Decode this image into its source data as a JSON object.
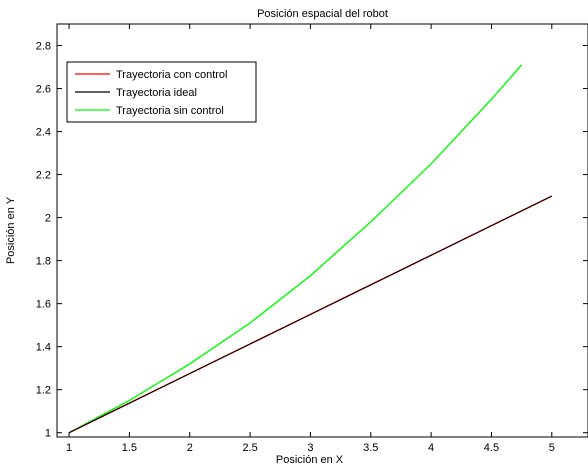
{
  "chart_data": {
    "type": "line",
    "title": "Posición espacial del robot",
    "xlabel": "Posición en X",
    "ylabel": "Posición en Y",
    "xlim": [
      0.9,
      5.3
    ],
    "ylim": [
      0.98,
      2.9
    ],
    "xticks": [
      1,
      1.5,
      2,
      2.5,
      3,
      3.5,
      4,
      4.5,
      5
    ],
    "xtick_labels": [
      "1",
      "1.5",
      "2",
      "2.5",
      "3",
      "3.5",
      "4",
      "4.5",
      "5"
    ],
    "yticks": [
      1,
      1.2,
      1.4,
      1.6,
      1.8,
      2,
      2.2,
      2.4,
      2.6,
      2.8
    ],
    "ytick_labels": [
      "1",
      "1.2",
      "1.4",
      "1.6",
      "1.8",
      "2",
      "2.2",
      "2.4",
      "2.6",
      "2.8"
    ],
    "grid": false,
    "legend_position": "top-left",
    "series": [
      {
        "name": "Trayectoria con control",
        "color": "#ff0000",
        "x": [
          1,
          1.5,
          2,
          2.5,
          3,
          3.5,
          4,
          4.5,
          5
        ],
        "y": [
          1.0,
          1.1375,
          1.275,
          1.4125,
          1.55,
          1.6875,
          1.825,
          1.9625,
          2.1
        ]
      },
      {
        "name": "Trayectoria ideal",
        "color": "#000000",
        "x": [
          1,
          1.5,
          2,
          2.5,
          3,
          3.5,
          4,
          4.5,
          5
        ],
        "y": [
          1.0,
          1.1375,
          1.275,
          1.4125,
          1.55,
          1.6875,
          1.825,
          1.9625,
          2.1
        ]
      },
      {
        "name": "Trayectoria sin control",
        "color": "#00ff00",
        "x": [
          1,
          1.5,
          2,
          2.5,
          3,
          3.5,
          4,
          4.5,
          4.75
        ],
        "y": [
          1.0,
          1.15,
          1.32,
          1.51,
          1.73,
          1.98,
          2.25,
          2.55,
          2.71
        ]
      }
    ]
  }
}
